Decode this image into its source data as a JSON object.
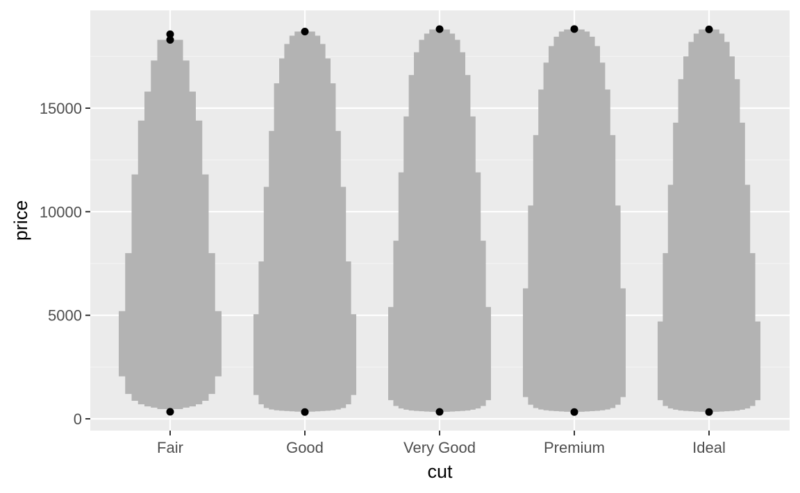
{
  "chart_data": {
    "type": "lvplot",
    "title": "",
    "xlabel": "cut",
    "ylabel": "price",
    "categories": [
      "Fair",
      "Good",
      "Very Good",
      "Premium",
      "Ideal"
    ],
    "ylim": [
      -600,
      19700
    ],
    "yticks": [
      0,
      5000,
      10000,
      15000
    ],
    "ytick_labels": [
      "0",
      "5000",
      "10000",
      "15000"
    ],
    "grid": true,
    "colors": {
      "panel": "#ebebeb",
      "grid_major": "#ffffff",
      "grid_minor": "#f4f4f4",
      "box_fill": "#b3b3b3",
      "outlier": "#000000"
    },
    "series": [
      {
        "category": "Fair",
        "boxes": [
          {
            "width": 1.0,
            "lower": 2050,
            "upper": 5200
          },
          {
            "width": 0.875,
            "lower": 1200,
            "upper": 8000
          },
          {
            "width": 0.75,
            "lower": 870,
            "upper": 11800
          },
          {
            "width": 0.625,
            "lower": 700,
            "upper": 14400
          },
          {
            "width": 0.5,
            "lower": 600,
            "upper": 15800
          },
          {
            "width": 0.375,
            "lower": 540,
            "upper": 17300
          },
          {
            "width": 0.25,
            "lower": 470,
            "upper": 18300
          }
        ],
        "outliers": [
          340,
          18300,
          18570
        ]
      },
      {
        "category": "Good",
        "boxes": [
          {
            "width": 1.0,
            "lower": 1150,
            "upper": 5050
          },
          {
            "width": 0.9,
            "lower": 700,
            "upper": 7600
          },
          {
            "width": 0.8,
            "lower": 520,
            "upper": 11200
          },
          {
            "width": 0.7,
            "lower": 450,
            "upper": 13900
          },
          {
            "width": 0.6,
            "lower": 410,
            "upper": 16200
          },
          {
            "width": 0.5,
            "lower": 390,
            "upper": 17400
          },
          {
            "width": 0.4,
            "lower": 375,
            "upper": 18100
          },
          {
            "width": 0.3,
            "lower": 360,
            "upper": 18500
          },
          {
            "width": 0.2,
            "lower": 345,
            "upper": 18700
          }
        ],
        "outliers": [
          327,
          18700
        ]
      },
      {
        "category": "Very Good",
        "boxes": [
          {
            "width": 1.0,
            "lower": 900,
            "upper": 5400
          },
          {
            "width": 0.9,
            "lower": 620,
            "upper": 8600
          },
          {
            "width": 0.8,
            "lower": 500,
            "upper": 11900
          },
          {
            "width": 0.7,
            "lower": 440,
            "upper": 14600
          },
          {
            "width": 0.6,
            "lower": 400,
            "upper": 16600
          },
          {
            "width": 0.5,
            "lower": 380,
            "upper": 17700
          },
          {
            "width": 0.4,
            "lower": 365,
            "upper": 18300
          },
          {
            "width": 0.3,
            "lower": 350,
            "upper": 18600
          },
          {
            "width": 0.2,
            "lower": 338,
            "upper": 18800
          }
        ],
        "outliers": [
          336,
          18818
        ]
      },
      {
        "category": "Premium",
        "boxes": [
          {
            "width": 1.0,
            "lower": 1050,
            "upper": 6300
          },
          {
            "width": 0.9,
            "lower": 680,
            "upper": 10300
          },
          {
            "width": 0.8,
            "lower": 520,
            "upper": 13700
          },
          {
            "width": 0.7,
            "lower": 450,
            "upper": 15900
          },
          {
            "width": 0.6,
            "lower": 410,
            "upper": 17200
          },
          {
            "width": 0.5,
            "lower": 385,
            "upper": 18000
          },
          {
            "width": 0.4,
            "lower": 370,
            "upper": 18450
          },
          {
            "width": 0.3,
            "lower": 355,
            "upper": 18700
          },
          {
            "width": 0.2,
            "lower": 340,
            "upper": 18800
          }
        ],
        "outliers": [
          326,
          18823
        ]
      },
      {
        "category": "Ideal",
        "boxes": [
          {
            "width": 1.0,
            "lower": 900,
            "upper": 4700
          },
          {
            "width": 0.9,
            "lower": 620,
            "upper": 8000
          },
          {
            "width": 0.8,
            "lower": 500,
            "upper": 11300
          },
          {
            "width": 0.7,
            "lower": 440,
            "upper": 14300
          },
          {
            "width": 0.6,
            "lower": 400,
            "upper": 16400
          },
          {
            "width": 0.5,
            "lower": 380,
            "upper": 17500
          },
          {
            "width": 0.4,
            "lower": 365,
            "upper": 18200
          },
          {
            "width": 0.3,
            "lower": 350,
            "upper": 18600
          },
          {
            "width": 0.2,
            "lower": 338,
            "upper": 18800
          }
        ],
        "outliers": [
          326,
          18806
        ]
      }
    ]
  }
}
